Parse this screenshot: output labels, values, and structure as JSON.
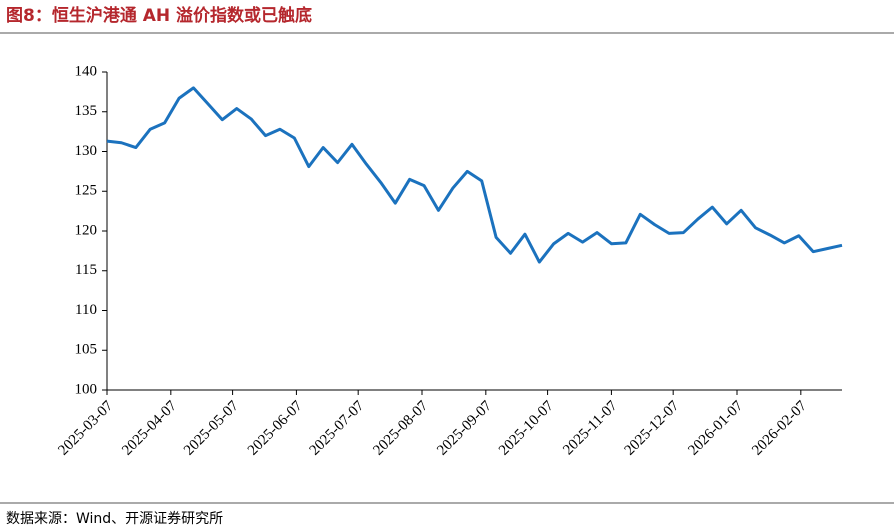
{
  "chart_data": {
    "type": "line",
    "title": "图8：恒生沪港通 AH 溢价指数或已触底",
    "source": "数据来源：Wind、开源证券研究所",
    "x": [
      "2025-03-07",
      "2025-03-14",
      "2025-03-21",
      "2025-03-28",
      "2025-04-04",
      "2025-04-11",
      "2025-04-18",
      "2025-04-25",
      "2025-05-02",
      "2025-05-09",
      "2025-05-16",
      "2025-05-23",
      "2025-05-30",
      "2025-06-06",
      "2025-06-13",
      "2025-06-20",
      "2025-06-27",
      "2025-07-04",
      "2025-07-11",
      "2025-07-18",
      "2025-07-25",
      "2025-08-01",
      "2025-08-08",
      "2025-08-15",
      "2025-08-22",
      "2025-08-29",
      "2025-09-05",
      "2025-09-12",
      "2025-09-19",
      "2025-09-26",
      "2025-10-03",
      "2025-10-10",
      "2025-10-17",
      "2025-10-24",
      "2025-10-31",
      "2025-11-07",
      "2025-11-14",
      "2025-11-21",
      "2025-11-28",
      "2025-12-05",
      "2025-12-12",
      "2025-12-19",
      "2025-12-26",
      "2026-01-02",
      "2026-01-09",
      "2026-01-16",
      "2026-01-23",
      "2026-01-30",
      "2026-02-06",
      "2026-02-13",
      "2026-02-20",
      "2026-02-27"
    ],
    "series": [
      {
        "name": "恒生沪港通AH溢价指数",
        "color": "#1b72be",
        "values": [
          131.3,
          131.1,
          130.5,
          132.8,
          133.6,
          136.7,
          138,
          136,
          134,
          135.4,
          134.1,
          132,
          132.8,
          131.7,
          128.1,
          130.5,
          128.6,
          130.9,
          128.4,
          126.1,
          123.5,
          126.5,
          125.7,
          122.6,
          125.4,
          127.5,
          126.3,
          119.2,
          117.2,
          119.6,
          116.1,
          118.4,
          119.7,
          118.6,
          119.8,
          118.4,
          118.5,
          122.1,
          120.8,
          119.7,
          119.8,
          121.5,
          123,
          120.9,
          122.6,
          120.4,
          119.5,
          118.5,
          119.4,
          117.4,
          117.8,
          118.2
        ]
      }
    ],
    "xlim": [
      "2025-03-07",
      "2026-02-27"
    ],
    "xticks": [
      "2025-03-07",
      "2025-04-07",
      "2025-05-07",
      "2025-06-07",
      "2025-07-07",
      "2025-08-07",
      "2025-09-07",
      "2025-10-07",
      "2025-11-07",
      "2025-12-07",
      "2026-01-07",
      "2026-02-07"
    ],
    "ylim": [
      100,
      140
    ],
    "yticks": [
      100,
      105,
      110,
      115,
      120,
      125,
      130,
      135,
      140
    ]
  }
}
